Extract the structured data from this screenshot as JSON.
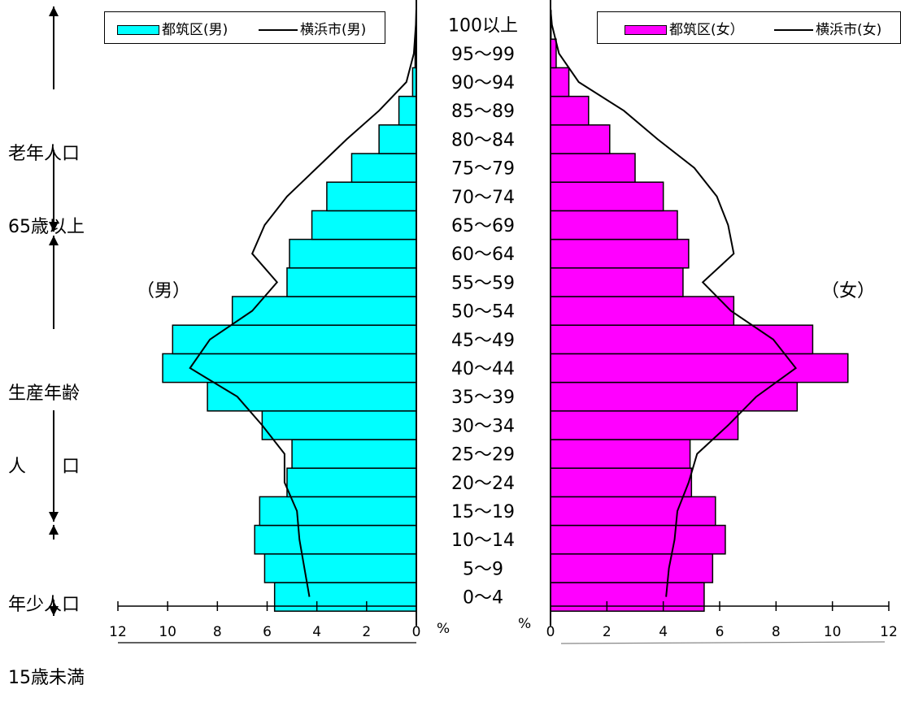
{
  "labels": {
    "elderly_line1": "老年人口",
    "elderly_line2": "65歳以上",
    "working_line1": "生産年齢",
    "working_line2": "人　　口",
    "young_line1": "年少人口",
    "young_line2": "15歳未満",
    "male_tag": "（男）",
    "female_tag": "（女）",
    "pct_left": "%",
    "pct_right": "%"
  },
  "legend": {
    "male_bar": "都筑区(男)",
    "male_line": "横浜市(男)",
    "female_bar": "都筑区(女）",
    "female_line": "横浜市(女)"
  },
  "colors": {
    "male_bar": "#00FFFF",
    "female_bar": "#FF00FF",
    "line": "#000000"
  },
  "chart_data": {
    "type": "bar",
    "orientation": "horizontal-pyramid",
    "categories": [
      "0～4",
      "5～9",
      "10～14",
      "15～19",
      "20～24",
      "25～29",
      "30～34",
      "35～39",
      "40～44",
      "45～49",
      "50～54",
      "55～59",
      "60～64",
      "65～69",
      "70～74",
      "75～79",
      "80～84",
      "85～89",
      "90～94",
      "95～99",
      "100以上"
    ],
    "xlim": [
      0,
      12
    ],
    "ticks": [
      "0",
      "2",
      "4",
      "6",
      "8",
      "10",
      "12"
    ],
    "series": [
      {
        "name": "都筑区(男)",
        "side": "left",
        "kind": "bar",
        "values": [
          5.7,
          6.1,
          6.5,
          6.3,
          5.2,
          5.0,
          6.2,
          8.4,
          10.2,
          9.8,
          7.4,
          5.2,
          5.1,
          4.2,
          3.6,
          2.6,
          1.5,
          0.7,
          0.15,
          0.05,
          0.01
        ]
      },
      {
        "name": "横浜市(男)",
        "side": "left",
        "kind": "line",
        "values": [
          4.3,
          4.5,
          4.7,
          4.8,
          5.3,
          5.3,
          6.2,
          7.2,
          9.1,
          8.3,
          6.6,
          5.6,
          6.6,
          6.1,
          5.2,
          4.0,
          2.8,
          1.5,
          0.4,
          0.1,
          0.02
        ]
      },
      {
        "name": "都筑区(女）",
        "side": "right",
        "kind": "bar",
        "values": [
          5.45,
          5.75,
          6.2,
          5.85,
          5.0,
          4.95,
          6.65,
          8.75,
          10.55,
          9.3,
          6.5,
          4.7,
          4.9,
          4.5,
          4.0,
          3.0,
          2.1,
          1.35,
          0.65,
          0.2,
          0.02
        ]
      },
      {
        "name": "横浜市(女)",
        "side": "right",
        "kind": "line",
        "values": [
          4.1,
          4.2,
          4.4,
          4.5,
          4.9,
          5.2,
          6.3,
          7.3,
          8.7,
          7.9,
          6.4,
          5.4,
          6.5,
          6.3,
          5.9,
          5.1,
          3.8,
          2.6,
          1.0,
          0.3,
          0.05
        ]
      }
    ]
  }
}
